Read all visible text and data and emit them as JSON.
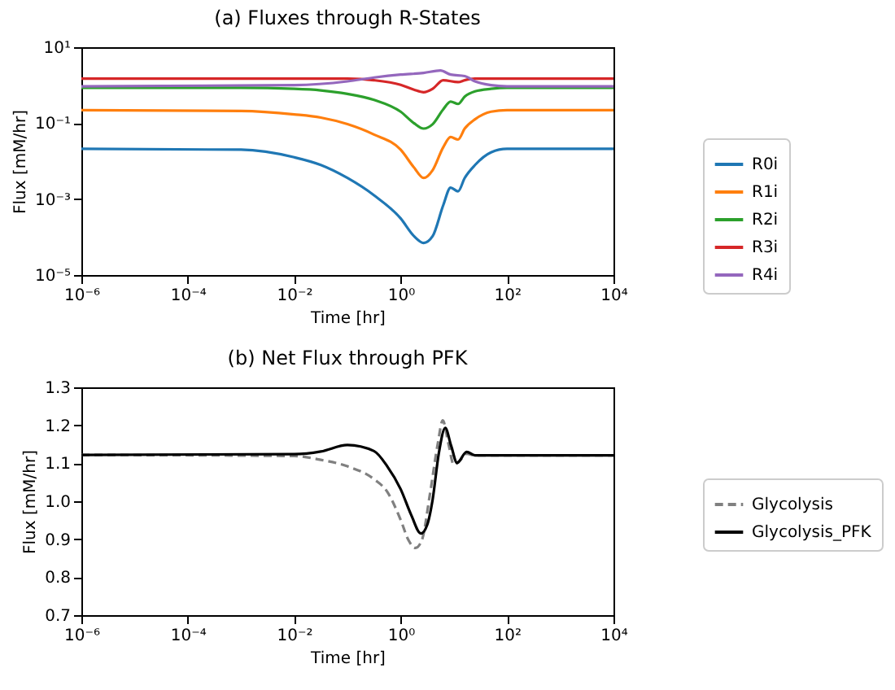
{
  "chart_data": [
    {
      "type": "line",
      "title": "(a) Fluxes through R-States",
      "xlabel": "Time [hr]",
      "ylabel": "Flux [mM/hr]",
      "log": "xy",
      "legend": "right",
      "xlim": [
        1e-06,
        10000
      ],
      "xticks": [
        {
          "value": 1e-06,
          "label": "10⁻⁶"
        },
        {
          "value": 0.0001,
          "label": "10⁻⁴"
        },
        {
          "value": 0.01,
          "label": "10⁻²"
        },
        {
          "value": 1,
          "label": "10⁰"
        },
        {
          "value": 100,
          "label": "10²"
        },
        {
          "value": 10000,
          "label": "10⁴"
        }
      ],
      "ylim": [
        1e-05,
        10
      ],
      "yticks": [
        {
          "value": 1e-05,
          "label": "10⁻⁵"
        },
        {
          "value": 0.001,
          "label": "10⁻³"
        },
        {
          "value": 0.1,
          "label": "10⁻¹"
        },
        {
          "value": 10,
          "label": "10¹"
        }
      ],
      "series": [
        {
          "name": "R0i",
          "color": "#1f77b4",
          "x": [
            1e-06,
            0.001,
            0.01,
            0.0316,
            0.1,
            0.316,
            1,
            1.78,
            2.7,
            4,
            6.3,
            8.7,
            12,
            16,
            25,
            50,
            100,
            10000
          ],
          "values": [
            0.021,
            0.02,
            0.0126,
            0.0079,
            0.0036,
            0.00126,
            0.00031,
            0.000106,
            7e-05,
            0.000106,
            0.00068,
            0.002,
            0.0016,
            0.0036,
            0.0079,
            0.017,
            0.021,
            0.021
          ]
        },
        {
          "name": "R1i",
          "color": "#ff7f0e",
          "x": [
            1e-06,
            0.001,
            0.01,
            0.0316,
            0.1,
            0.316,
            1,
            1.78,
            2.7,
            4,
            6.3,
            8.7,
            12,
            16,
            25,
            50,
            100,
            10000
          ],
          "values": [
            0.22,
            0.21,
            0.17,
            0.14,
            0.094,
            0.05,
            0.02,
            0.0068,
            0.0036,
            0.0058,
            0.023,
            0.043,
            0.037,
            0.072,
            0.126,
            0.2,
            0.22,
            0.22
          ]
        },
        {
          "name": "R2i",
          "color": "#2ca02c",
          "x": [
            1e-06,
            0.001,
            0.01,
            0.0316,
            0.1,
            0.316,
            1,
            1.78,
            2.7,
            4,
            6.3,
            8.7,
            12,
            16,
            25,
            50,
            100,
            10000
          ],
          "values": [
            0.85,
            0.85,
            0.8,
            0.73,
            0.59,
            0.41,
            0.2,
            0.1,
            0.072,
            0.094,
            0.23,
            0.37,
            0.32,
            0.5,
            0.69,
            0.8,
            0.85,
            0.85
          ]
        },
        {
          "name": "R3i",
          "color": "#d62728",
          "x": [
            1e-06,
            0.1,
            0.316,
            1,
            1.78,
            2.7,
            4,
            6.3,
            12,
            16,
            25,
            10000
          ],
          "values": [
            1.48,
            1.48,
            1.35,
            1.02,
            0.76,
            0.65,
            0.8,
            1.35,
            1.2,
            1.35,
            1.48,
            1.48
          ]
        },
        {
          "name": "R4i",
          "color": "#9467bd",
          "x": [
            1e-06,
            0.01,
            0.1,
            0.316,
            1,
            2.7,
            5.6,
            8.7,
            16,
            25,
            50,
            100,
            10000
          ],
          "values": [
            0.93,
            1.0,
            1.26,
            1.59,
            1.9,
            2.1,
            2.43,
            1.9,
            1.74,
            1.26,
            1.0,
            0.93,
            0.93
          ]
        }
      ]
    },
    {
      "type": "line",
      "title": "(b) Net Flux through PFK",
      "xlabel": "Time [hr]",
      "ylabel": "Flux [mM/hr]",
      "log": "x",
      "legend": "right",
      "xlim": [
        1e-06,
        10000
      ],
      "xticks": [
        {
          "value": 1e-06,
          "label": "10⁻⁶"
        },
        {
          "value": 0.0001,
          "label": "10⁻⁴"
        },
        {
          "value": 0.01,
          "label": "10⁻²"
        },
        {
          "value": 1,
          "label": "10⁰"
        },
        {
          "value": 100,
          "label": "10²"
        },
        {
          "value": 10000,
          "label": "10⁴"
        }
      ],
      "ylim": [
        0.7,
        1.3
      ],
      "yticks": [
        0.7,
        0.8,
        0.9,
        {
          "value": 1,
          "label": "1.0"
        },
        1.1,
        1.2,
        1.3
      ],
      "series": [
        {
          "name": "Glycolysis",
          "color": "#808080",
          "line_style": "dashed",
          "x": [
            1e-06,
            0.01,
            0.0316,
            0.1,
            0.316,
            0.56,
            1,
            1.41,
            1.9,
            2.5,
            3.55,
            5,
            6.2,
            7.9,
            10,
            12.6,
            17.4,
            25,
            10000
          ],
          "values": [
            1.122,
            1.119,
            1.109,
            1.092,
            1.058,
            1.025,
            0.951,
            0.897,
            0.877,
            0.897,
            1.018,
            1.152,
            1.213,
            1.152,
            1.096,
            1.105,
            1.125,
            1.121,
            1.121
          ]
        },
        {
          "name": "Glycolysis_PFK",
          "color": "#000000",
          "line_style": "solid",
          "x": [
            1e-06,
            0.01,
            0.0316,
            0.1,
            0.316,
            0.56,
            1,
            1.58,
            2.4,
            3.16,
            4,
            5.2,
            6.9,
            8.9,
            11.5,
            17.4,
            25,
            10000
          ],
          "values": [
            1.122,
            1.124,
            1.131,
            1.148,
            1.132,
            1.092,
            1.032,
            0.964,
            0.915,
            0.938,
            1.005,
            1.125,
            1.193,
            1.146,
            1.101,
            1.13,
            1.121,
            1.121
          ]
        }
      ]
    }
  ]
}
